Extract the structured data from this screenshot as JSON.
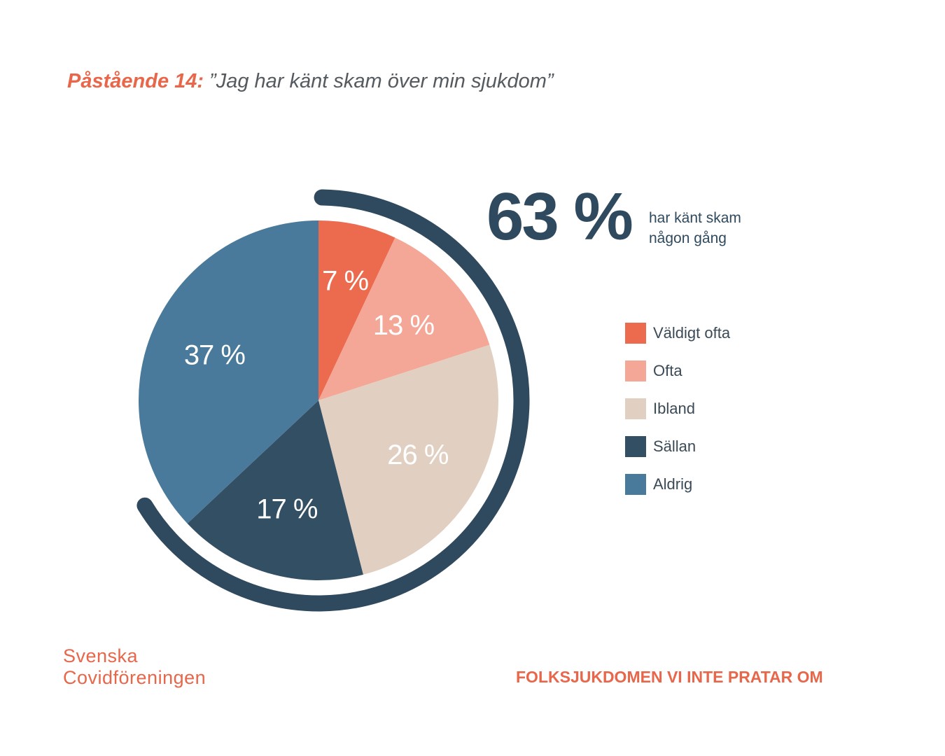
{
  "header": {
    "lead": "Påstående 14:",
    "quote": "”Jag har känt skam över min sjukdom”"
  },
  "highlight": {
    "value": "63 %",
    "caption_line1": "har känt skam",
    "caption_line2": "någon gång"
  },
  "chart_data": {
    "type": "pie",
    "categories": [
      "Väldigt ofta",
      "Ofta",
      "Ibland",
      "Sällan",
      "Aldrig"
    ],
    "values": [
      7,
      13,
      26,
      17,
      37
    ],
    "labels": [
      "7 %",
      "13 %",
      "26 %",
      "17 %",
      "37 %"
    ],
    "colors": [
      "#ec6a4d",
      "#f4a797",
      "#e1d0c2",
      "#334f64",
      "#4a7a9b"
    ],
    "label_colors": [
      "#ffffff",
      "#ffffff",
      "#ffffff",
      "#ffffff",
      "#ffffff"
    ],
    "legend_position": "right",
    "highlight_arc": {
      "from_category": "Väldigt ofta",
      "to_category": "Sällan",
      "color": "#2f4a5e"
    }
  },
  "legend": [
    {
      "label": "Väldigt ofta",
      "color": "#ec6a4d"
    },
    {
      "label": "Ofta",
      "color": "#f4a797"
    },
    {
      "label": "Ibland",
      "color": "#e1d0c2"
    },
    {
      "label": "Sällan",
      "color": "#334f64"
    },
    {
      "label": "Aldrig",
      "color": "#4a7a9b"
    }
  ],
  "brand": {
    "line1": "Svenska",
    "line2": "Covidföreningen"
  },
  "footer": {
    "text": "FOLKSJUKDOMEN VI INTE PRATAR OM"
  }
}
